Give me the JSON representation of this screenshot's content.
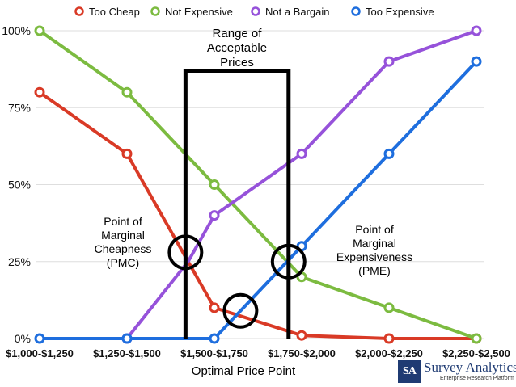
{
  "chart_data": {
    "type": "line",
    "categories": [
      "$1,000-$1,250",
      "$1,250-$1,500",
      "$1,500-$1,750",
      "$1,750-$2,000",
      "$2,000-$2,250",
      "$2,250-$2,500"
    ],
    "x_positions": [
      0,
      1,
      2,
      3,
      4,
      5
    ],
    "y_ticks": [
      0,
      25,
      50,
      75,
      100
    ],
    "y_tick_labels": [
      "0%",
      "25%",
      "50%",
      "75%",
      "100%"
    ],
    "ylim": [
      0,
      100
    ],
    "grid": "horizontal",
    "legend_position": "top",
    "series": [
      {
        "name": "Too Cheap",
        "color": "#d93a26",
        "x": [
          0,
          1,
          1.7,
          2,
          3,
          4,
          5
        ],
        "values": [
          80,
          60,
          25,
          10,
          1,
          0,
          0
        ],
        "markers": [
          true,
          true,
          false,
          true,
          true,
          true,
          true
        ]
      },
      {
        "name": "Not Expensive",
        "color": "#7cbb40",
        "x": [
          0,
          1,
          2,
          3,
          4,
          5
        ],
        "values": [
          100,
          80,
          50,
          20,
          10,
          0
        ],
        "markers": [
          true,
          true,
          true,
          true,
          true,
          true
        ]
      },
      {
        "name": "Not a Bargain",
        "color": "#9652da",
        "x": [
          1,
          1.7,
          2,
          3,
          4,
          5
        ],
        "values": [
          0,
          25,
          40,
          60,
          90,
          100
        ],
        "markers": [
          true,
          false,
          true,
          true,
          true,
          true
        ]
      },
      {
        "name": "Too Expensive",
        "color": "#1e6ede",
        "x": [
          0,
          1,
          2,
          3,
          4,
          5
        ],
        "values": [
          0,
          0,
          0,
          30,
          60,
          90
        ],
        "markers": [
          true,
          true,
          true,
          true,
          true,
          true
        ]
      }
    ],
    "range_box": {
      "x_start": 1.67,
      "x_end": 2.85,
      "y_top": 87,
      "label": [
        "Range of",
        "Acceptable",
        "Prices"
      ]
    },
    "circles": [
      {
        "name": "pmc",
        "x": 1.67,
        "y": 28
      },
      {
        "name": "optimal",
        "x": 2.3,
        "y": 9
      },
      {
        "name": "pme",
        "x": 2.85,
        "y": 25
      }
    ],
    "annotations": {
      "pmc": [
        "Point of",
        "Marginal",
        "Cheapness",
        "(PMC)"
      ],
      "pme": [
        "Point of",
        "Marginal",
        "Expensiveness",
        "(PME)"
      ],
      "optimal": "Optimal Price Point"
    }
  },
  "logo": {
    "mark": "SA",
    "name": "Survey Analytics",
    "tagline": "Enterprise Research Platform"
  }
}
